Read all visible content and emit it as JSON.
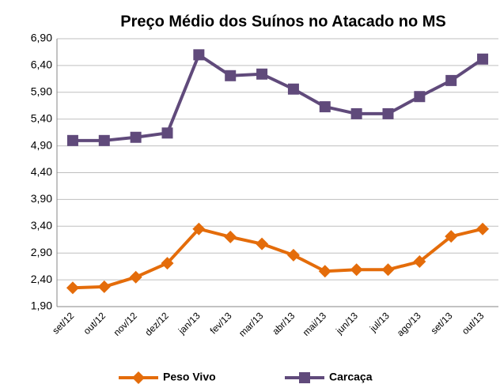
{
  "chart_data": {
    "type": "line",
    "title": "Preço Médio dos Suínos no Atacado no MS",
    "categories": [
      "set/12",
      "out/12",
      "nov/12",
      "dez/12",
      "jan/13",
      "fev/13",
      "mar/13",
      "abr/13",
      "mai/13",
      "jun/13",
      "jul/13",
      "ago/13",
      "set/13",
      "out/13"
    ],
    "series": [
      {
        "name": "Peso Vivo",
        "color": "#e46c0a",
        "marker": "diamond",
        "values": [
          2.25,
          2.27,
          2.45,
          2.71,
          3.35,
          3.2,
          3.07,
          2.86,
          2.56,
          2.59,
          2.59,
          2.74,
          3.21,
          3.35
        ]
      },
      {
        "name": "Carcaça",
        "color": "#604a7b",
        "marker": "square",
        "values": [
          5.0,
          5.0,
          5.06,
          5.14,
          6.6,
          6.21,
          6.24,
          5.96,
          5.63,
          5.5,
          5.5,
          5.82,
          6.12,
          6.52
        ]
      }
    ],
    "ylim": [
      1.9,
      6.9
    ],
    "yticks": [
      {
        "value": 1.9,
        "label": "1,90"
      },
      {
        "value": 2.4,
        "label": "2,40"
      },
      {
        "value": 2.9,
        "label": "2,90"
      },
      {
        "value": 3.4,
        "label": "3,40"
      },
      {
        "value": 3.9,
        "label": "3,90"
      },
      {
        "value": 4.4,
        "label": "4,40"
      },
      {
        "value": 4.9,
        "label": "4,90"
      },
      {
        "value": 5.4,
        "label": "5,40"
      },
      {
        "value": 5.9,
        "label": "5,90"
      },
      {
        "value": 6.4,
        "label": "6,40"
      },
      {
        "value": 6.9,
        "label": "6,90"
      }
    ],
    "grid": true,
    "legend": "bottom"
  }
}
